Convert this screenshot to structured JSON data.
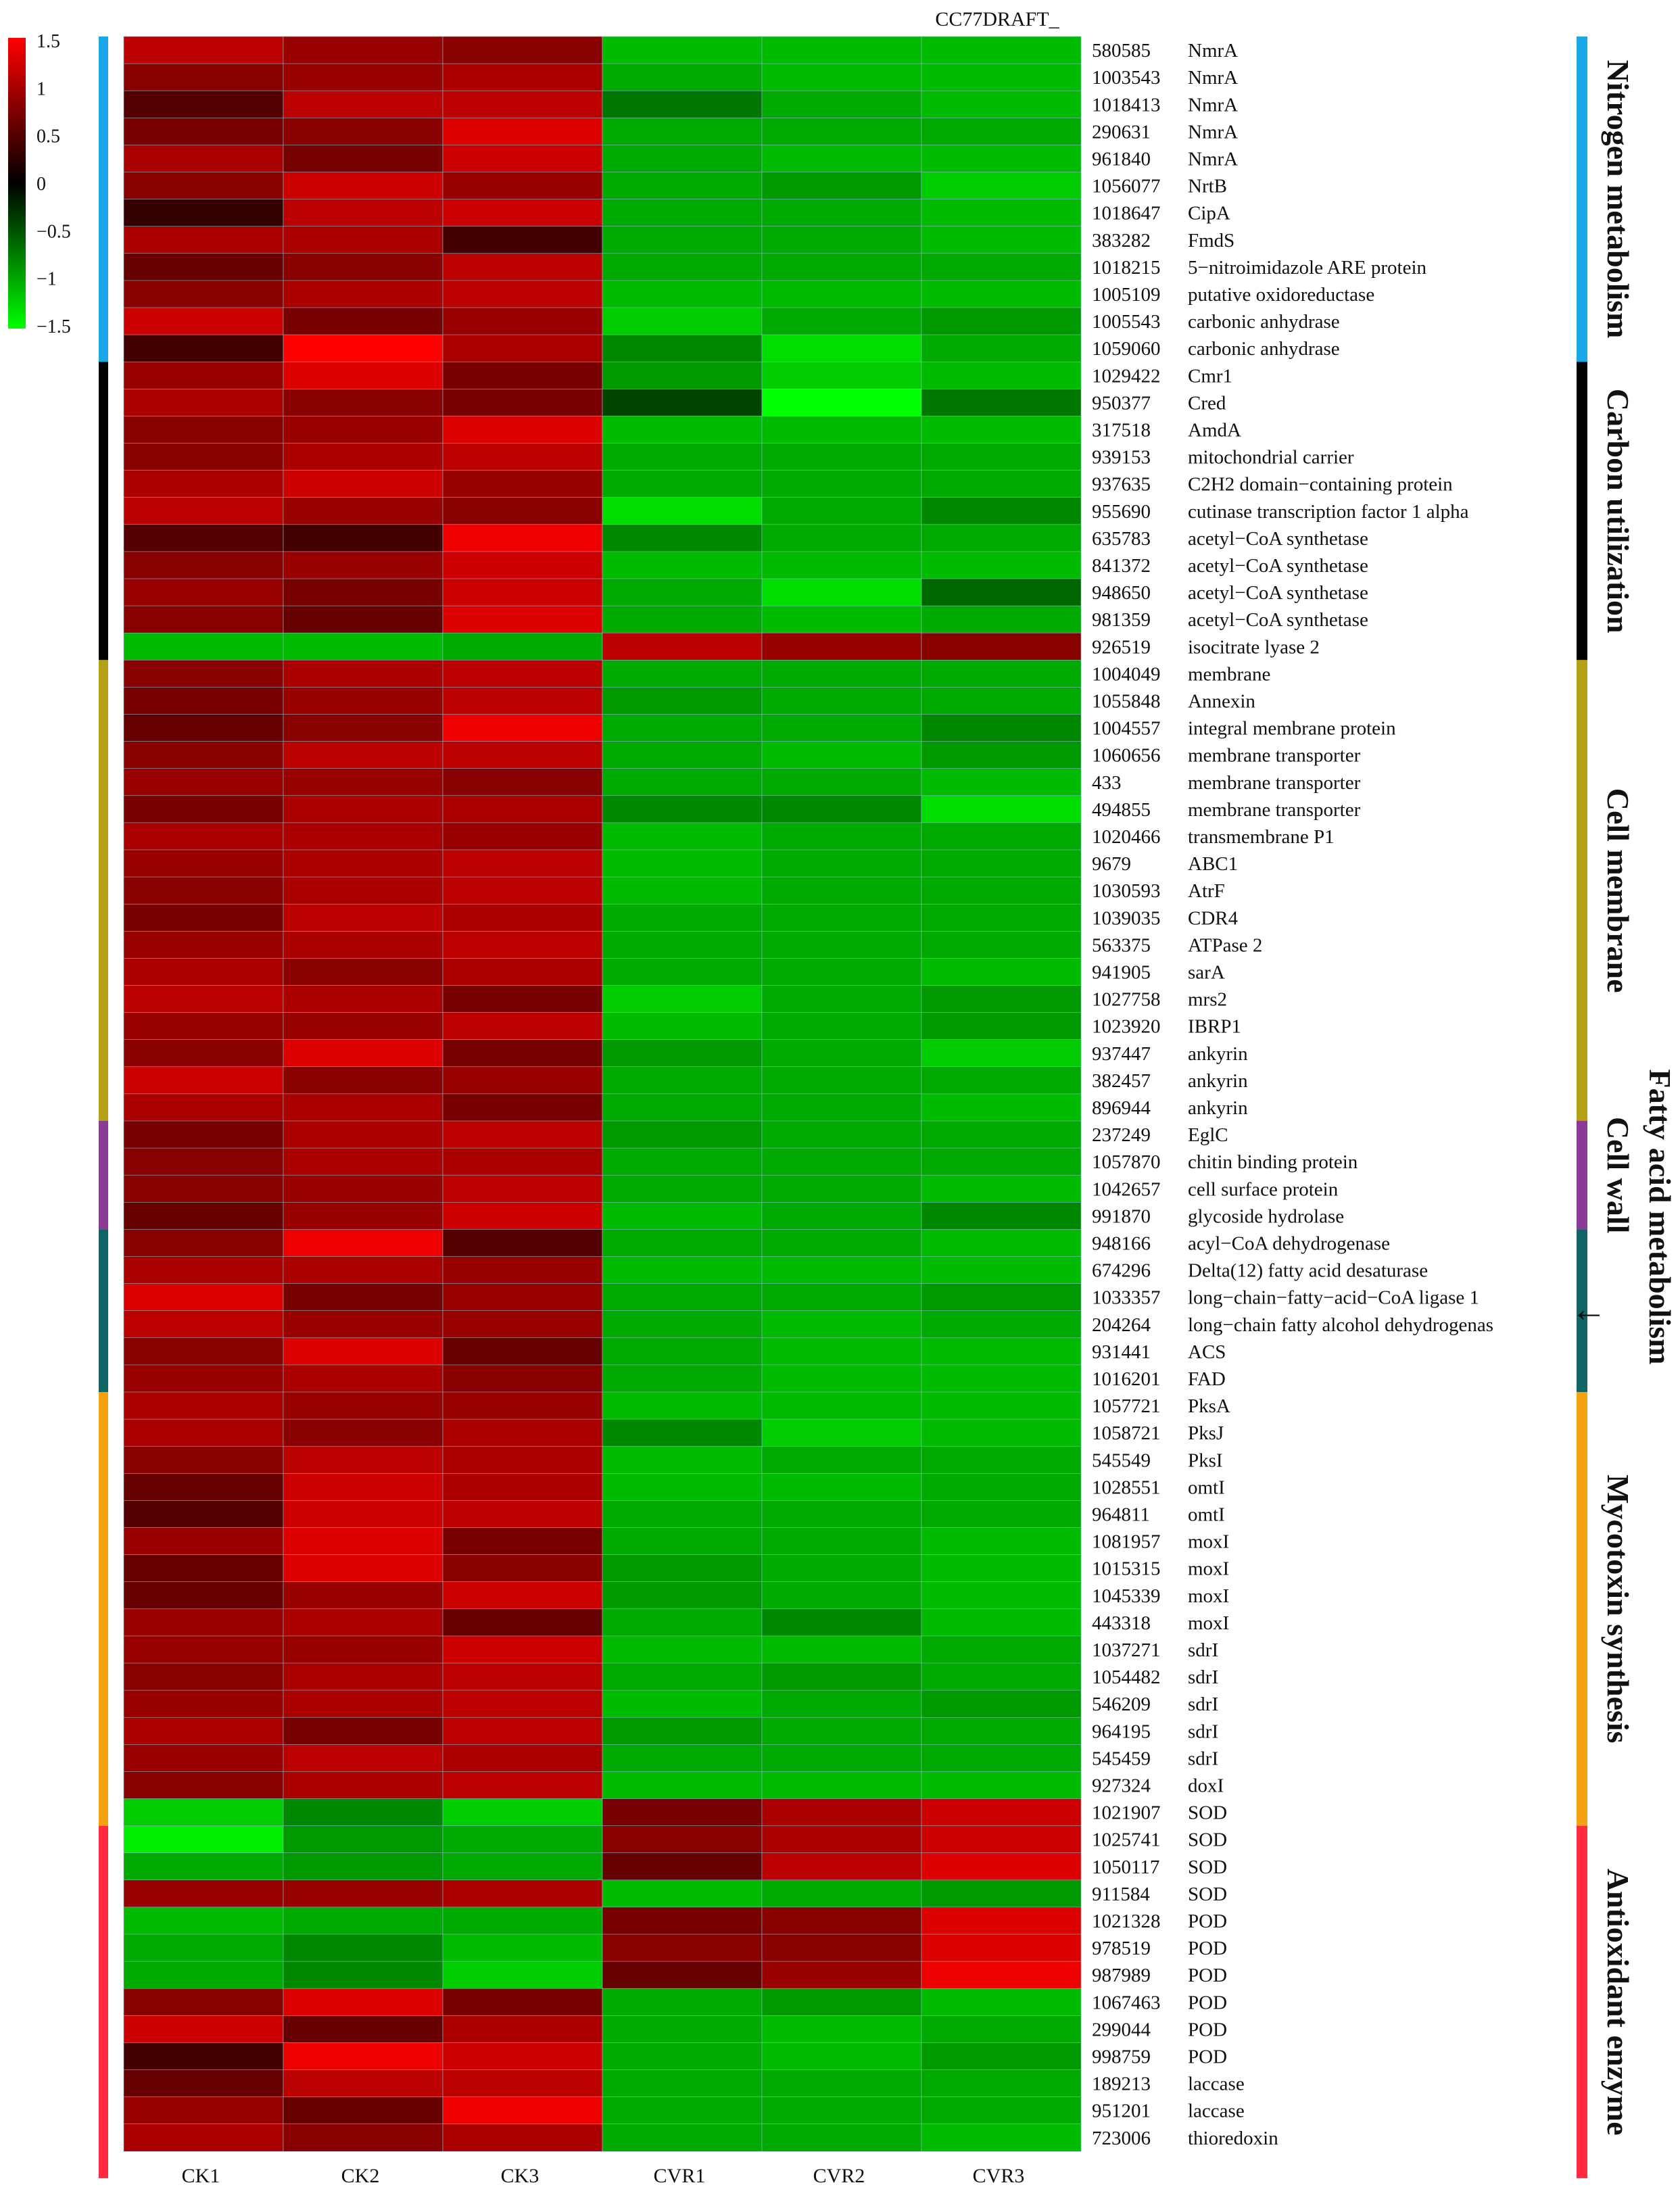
{
  "chart_data": {
    "type": "heatmap",
    "title": "CC77DRAFT_",
    "colorbar": {
      "ticks": [
        "1.5",
        "1",
        "0.5",
        "0",
        "−0.5",
        "−1",
        "−1.5"
      ],
      "min": -1.5,
      "max": 1.5,
      "colors": {
        "high": "#ff0000",
        "mid": "#000000",
        "low": "#00ff00"
      }
    },
    "columns": [
      "CK1",
      "CK2",
      "CK3",
      "CVR1",
      "CVR2",
      "CVR3"
    ],
    "groups": [
      {
        "name": "Nitrogen metabolism",
        "color": "#1aa7e8",
        "start": 0,
        "end": 11
      },
      {
        "name": "Carbon utilization",
        "color": "#000000",
        "start": 12,
        "end": 22
      },
      {
        "name": "Cell membrane",
        "color": "#b5a013",
        "start": 23,
        "end": 39
      },
      {
        "name": "Cell wall",
        "color": "#8b3a96",
        "start": 40,
        "end": 43
      },
      {
        "name": "Fatty acid metabolism",
        "color": "#0f6466",
        "start": 44,
        "end": 49
      },
      {
        "name": "Mycotoxin synthesis",
        "color": "#f4a20f",
        "start": 50,
        "end": 65
      },
      {
        "name": "Antioxidant enzyme",
        "color": "#ff2a3e",
        "start": 66,
        "end": 78
      }
    ],
    "rows": [
      {
        "id": "580585",
        "name": "NmrA",
        "values": [
          1.1,
          0.9,
          0.8,
          -1.1,
          -1.1,
          -1.1
        ]
      },
      {
        "id": "1003543",
        "name": "NmrA",
        "values": [
          0.8,
          0.9,
          1.0,
          -1.0,
          -1.1,
          -1.1
        ]
      },
      {
        "id": "1018413",
        "name": "NmrA",
        "values": [
          0.5,
          1.1,
          1.1,
          -0.7,
          -1.0,
          -1.1
        ]
      },
      {
        "id": "290631",
        "name": "NmrA",
        "values": [
          0.7,
          0.8,
          1.3,
          -1.0,
          -1.0,
          -1.0
        ]
      },
      {
        "id": "961840",
        "name": "NmrA",
        "values": [
          1.0,
          0.7,
          1.2,
          -1.0,
          -1.1,
          -1.1
        ]
      },
      {
        "id": "1056077",
        "name": "NrtB",
        "values": [
          0.8,
          1.2,
          0.9,
          -1.0,
          -0.9,
          -1.2
        ]
      },
      {
        "id": "1018647",
        "name": "CipA",
        "values": [
          0.3,
          1.1,
          1.2,
          -1.0,
          -1.0,
          -1.1
        ]
      },
      {
        "id": "383282",
        "name": "FmdS",
        "values": [
          1.0,
          1.0,
          0.4,
          -1.0,
          -1.0,
          -1.1
        ]
      },
      {
        "id": "1018215",
        "name": "5−nitroimidazole ARE protein",
        "values": [
          0.6,
          0.8,
          1.1,
          -1.0,
          -1.0,
          -1.0
        ]
      },
      {
        "id": "1005109",
        "name": "putative oxidoreductase",
        "values": [
          0.8,
          1.0,
          1.1,
          -1.1,
          -1.1,
          -1.1
        ]
      },
      {
        "id": "1005543",
        "name": "carbonic anhydrase",
        "values": [
          1.2,
          0.7,
          0.9,
          -1.2,
          -1.0,
          -0.9
        ]
      },
      {
        "id": "1059060",
        "name": "carbonic anhydrase",
        "values": [
          0.4,
          1.5,
          1.0,
          -0.8,
          -1.3,
          -1.0
        ]
      },
      {
        "id": "1029422",
        "name": "Cmr1",
        "values": [
          0.9,
          1.3,
          0.7,
          -0.9,
          -1.2,
          -1.1
        ]
      },
      {
        "id": "950377",
        "name": "Cred",
        "values": [
          1.0,
          0.8,
          0.7,
          -0.4,
          -1.5,
          -0.7
        ]
      },
      {
        "id": "317518",
        "name": "AmdA",
        "values": [
          0.8,
          0.9,
          1.3,
          -1.1,
          -1.1,
          -1.1
        ]
      },
      {
        "id": "939153",
        "name": "mitochondrial carrier",
        "values": [
          0.8,
          1.0,
          1.1,
          -1.0,
          -1.0,
          -1.0
        ]
      },
      {
        "id": "937635",
        "name": "C2H2 domain−containing protein",
        "values": [
          1.0,
          1.2,
          0.9,
          -1.0,
          -1.0,
          -1.0
        ]
      },
      {
        "id": "955690",
        "name": "cutinase transcription factor 1 alpha",
        "values": [
          1.1,
          0.9,
          0.8,
          -1.3,
          -1.0,
          -0.8
        ]
      },
      {
        "id": "635783",
        "name": "acetyl−CoA synthetase",
        "values": [
          0.5,
          0.4,
          1.4,
          -0.8,
          -1.0,
          -1.0
        ]
      },
      {
        "id": "841372",
        "name": "acetyl−CoA synthetase",
        "values": [
          0.8,
          0.9,
          1.2,
          -1.1,
          -1.1,
          -1.1
        ]
      },
      {
        "id": "948650",
        "name": "acetyl−CoA synthetase",
        "values": [
          0.9,
          0.7,
          1.2,
          -1.0,
          -1.3,
          -0.6
        ]
      },
      {
        "id": "981359",
        "name": "acetyl−CoA synthetase",
        "values": [
          0.8,
          0.6,
          1.3,
          -1.0,
          -1.1,
          -1.0
        ]
      },
      {
        "id": "926519",
        "name": "isocitrate lyase 2",
        "values": [
          -1.1,
          -1.1,
          -1.0,
          1.1,
          0.9,
          0.8
        ]
      },
      {
        "id": "1004049",
        "name": "membrane",
        "values": [
          0.8,
          1.0,
          1.1,
          -1.0,
          -1.0,
          -1.0
        ]
      },
      {
        "id": "1055848",
        "name": "Annexin",
        "values": [
          0.7,
          0.9,
          1.1,
          -0.9,
          -1.0,
          -1.0
        ]
      },
      {
        "id": "1004557",
        "name": "integral membrane protein",
        "values": [
          0.6,
          0.8,
          1.4,
          -1.0,
          -1.0,
          -0.8
        ]
      },
      {
        "id": "1060656",
        "name": "membrane transporter",
        "values": [
          0.8,
          1.1,
          1.1,
          -1.0,
          -1.1,
          -0.9
        ]
      },
      {
        "id": "433",
        "name": "membrane transporter",
        "values": [
          0.9,
          0.9,
          0.8,
          -1.0,
          -1.0,
          -1.1
        ]
      },
      {
        "id": "494855",
        "name": "membrane transporter",
        "values": [
          0.7,
          1.0,
          1.0,
          -0.8,
          -0.8,
          -1.3
        ]
      },
      {
        "id": "1020466",
        "name": "transmembrane P1",
        "values": [
          1.0,
          1.0,
          0.9,
          -1.1,
          -1.0,
          -1.0
        ]
      },
      {
        "id": "9679",
        "name": "ABC1",
        "values": [
          0.9,
          1.0,
          1.1,
          -1.1,
          -1.0,
          -1.0
        ]
      },
      {
        "id": "1030593",
        "name": "AtrF",
        "values": [
          0.8,
          1.0,
          1.1,
          -1.1,
          -1.0,
          -1.0
        ]
      },
      {
        "id": "1039035",
        "name": "CDR4",
        "values": [
          0.7,
          1.1,
          1.0,
          -1.0,
          -1.0,
          -1.0
        ]
      },
      {
        "id": "563375",
        "name": "ATPase 2",
        "values": [
          0.9,
          1.0,
          1.1,
          -1.0,
          -1.0,
          -1.0
        ]
      },
      {
        "id": "941905",
        "name": "sarA",
        "values": [
          1.0,
          0.8,
          1.0,
          -1.0,
          -1.0,
          -1.1
        ]
      },
      {
        "id": "1027758",
        "name": "mrs2",
        "values": [
          1.1,
          1.0,
          0.7,
          -1.2,
          -1.0,
          -0.9
        ]
      },
      {
        "id": "1023920",
        "name": "IBRP1",
        "values": [
          0.9,
          0.9,
          1.1,
          -1.1,
          -1.0,
          -0.9
        ]
      },
      {
        "id": "937447",
        "name": "ankyrin",
        "values": [
          0.8,
          1.3,
          0.7,
          -0.9,
          -1.0,
          -1.2
        ]
      },
      {
        "id": "382457",
        "name": "ankyrin",
        "values": [
          1.2,
          0.8,
          0.9,
          -1.0,
          -1.0,
          -1.0
        ]
      },
      {
        "id": "896944",
        "name": "ankyrin",
        "values": [
          1.0,
          1.0,
          0.7,
          -1.0,
          -1.0,
          -1.1
        ]
      },
      {
        "id": "237249",
        "name": "EglC",
        "values": [
          0.7,
          1.0,
          1.1,
          -0.9,
          -1.0,
          -1.0
        ]
      },
      {
        "id": "1057870",
        "name": "chitin binding protein",
        "values": [
          0.8,
          1.0,
          1.0,
          -1.0,
          -1.0,
          -1.0
        ]
      },
      {
        "id": "1042657",
        "name": "cell surface protein",
        "values": [
          0.8,
          0.9,
          1.1,
          -1.0,
          -1.0,
          -1.1
        ]
      },
      {
        "id": "991870",
        "name": "glycoside hydrolase",
        "values": [
          0.6,
          0.9,
          1.2,
          -1.1,
          -1.0,
          -0.8
        ]
      },
      {
        "id": "948166",
        "name": "acyl−CoA dehydrogenase",
        "values": [
          0.8,
          1.4,
          0.5,
          -1.0,
          -1.0,
          -1.1
        ]
      },
      {
        "id": "674296",
        "name": "Delta(12) fatty acid desaturase",
        "values": [
          1.0,
          1.0,
          0.9,
          -1.1,
          -1.1,
          -1.1
        ]
      },
      {
        "id": "1033357",
        "name": "long−chain−fatty−acid−CoA ligase 1",
        "values": [
          1.3,
          0.7,
          0.9,
          -1.0,
          -1.0,
          -0.9
        ]
      },
      {
        "id": "204264",
        "name": "long−chain fatty alcohol dehydrogenas",
        "values": [
          1.1,
          0.9,
          0.9,
          -1.0,
          -1.1,
          -1.0
        ]
      },
      {
        "id": "931441",
        "name": "ACS",
        "values": [
          0.8,
          1.3,
          0.6,
          -1.0,
          -1.1,
          -1.1
        ]
      },
      {
        "id": "1016201",
        "name": "FAD",
        "values": [
          0.9,
          1.0,
          0.8,
          -1.0,
          -1.1,
          -1.1
        ]
      },
      {
        "id": "1057721",
        "name": "PksA",
        "values": [
          1.0,
          0.9,
          0.9,
          -1.1,
          -1.1,
          -1.1
        ]
      },
      {
        "id": "1058721",
        "name": "PksJ",
        "values": [
          1.0,
          0.8,
          1.0,
          -0.8,
          -1.2,
          -1.1
        ]
      },
      {
        "id": "545549",
        "name": "PksI",
        "values": [
          0.8,
          1.1,
          1.0,
          -1.1,
          -1.0,
          -1.0
        ]
      },
      {
        "id": "1028551",
        "name": "omtI",
        "values": [
          0.6,
          1.2,
          1.0,
          -1.1,
          -1.1,
          -1.0
        ]
      },
      {
        "id": "964811",
        "name": "omtI",
        "values": [
          0.5,
          1.2,
          1.1,
          -1.0,
          -1.0,
          -1.0
        ]
      },
      {
        "id": "1081957",
        "name": "moxI",
        "values": [
          0.9,
          1.3,
          0.7,
          -1.0,
          -1.0,
          -1.1
        ]
      },
      {
        "id": "1015315",
        "name": "moxI",
        "values": [
          0.6,
          1.3,
          0.8,
          -0.9,
          -1.0,
          -1.1
        ]
      },
      {
        "id": "1045339",
        "name": "moxI",
        "values": [
          0.6,
          0.9,
          1.2,
          -0.9,
          -1.0,
          -1.1
        ]
      },
      {
        "id": "443318",
        "name": "moxI",
        "values": [
          0.9,
          1.0,
          0.6,
          -1.0,
          -0.8,
          -1.1
        ]
      },
      {
        "id": "1037271",
        "name": "sdrI",
        "values": [
          0.9,
          0.9,
          1.2,
          -1.1,
          -1.1,
          -1.0
        ]
      },
      {
        "id": "1054482",
        "name": "sdrI",
        "values": [
          0.8,
          1.0,
          1.1,
          -1.0,
          -0.9,
          -1.0
        ]
      },
      {
        "id": "546209",
        "name": "sdrI",
        "values": [
          0.9,
          1.0,
          1.1,
          -1.1,
          -1.0,
          -0.9
        ]
      },
      {
        "id": "964195",
        "name": "sdrI",
        "values": [
          1.0,
          0.7,
          1.1,
          -0.9,
          -1.0,
          -1.0
        ]
      },
      {
        "id": "545459",
        "name": "sdrI",
        "values": [
          0.9,
          1.1,
          1.0,
          -1.0,
          -1.0,
          -1.0
        ]
      },
      {
        "id": "927324",
        "name": "doxI",
        "values": [
          0.8,
          1.0,
          1.1,
          -1.1,
          -1.1,
          -1.1
        ]
      },
      {
        "id": "1021907",
        "name": "SOD",
        "values": [
          -1.2,
          -0.8,
          -1.2,
          0.7,
          1.0,
          1.2
        ]
      },
      {
        "id": "1025741",
        "name": "SOD",
        "values": [
          -1.4,
          -0.9,
          -1.0,
          0.8,
          1.0,
          1.2
        ]
      },
      {
        "id": "1050117",
        "name": "SOD",
        "values": [
          -1.0,
          -0.9,
          -1.0,
          0.6,
          1.1,
          1.3
        ]
      },
      {
        "id": "911584",
        "name": "SOD",
        "values": [
          0.9,
          0.9,
          1.0,
          -1.1,
          -1.0,
          -0.9
        ]
      },
      {
        "id": "1021328",
        "name": "POD",
        "values": [
          -1.1,
          -1.0,
          -1.0,
          0.7,
          0.8,
          1.3
        ]
      },
      {
        "id": "978519",
        "name": "POD",
        "values": [
          -1.0,
          -0.8,
          -1.1,
          0.8,
          0.8,
          1.3
        ]
      },
      {
        "id": "987989",
        "name": "POD",
        "values": [
          -1.0,
          -0.8,
          -1.2,
          0.6,
          0.9,
          1.4
        ]
      },
      {
        "id": "1067463",
        "name": "POD",
        "values": [
          0.8,
          1.3,
          0.7,
          -1.0,
          -0.9,
          -1.1
        ]
      },
      {
        "id": "299044",
        "name": "POD",
        "values": [
          1.2,
          0.6,
          1.0,
          -1.0,
          -1.1,
          -1.0
        ]
      },
      {
        "id": "998759",
        "name": "POD",
        "values": [
          0.4,
          1.4,
          1.2,
          -1.0,
          -1.1,
          -0.9
        ]
      },
      {
        "id": "189213",
        "name": "laccase",
        "values": [
          0.6,
          1.1,
          1.1,
          -1.0,
          -1.0,
          -1.0
        ]
      },
      {
        "id": "951201",
        "name": "laccase",
        "values": [
          0.9,
          0.6,
          1.4,
          -1.0,
          -1.0,
          -1.0
        ]
      },
      {
        "id": "723006",
        "name": "thioredoxin",
        "values": [
          1.0,
          0.8,
          1.0,
          -1.0,
          -1.0,
          -1.1
        ]
      }
    ],
    "annotations": [
      "←"
    ]
  }
}
